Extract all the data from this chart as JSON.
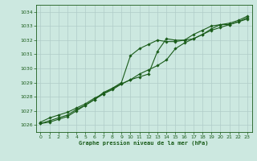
{
  "title": "Graphe pression niveau de la mer (hPa)",
  "bg_color": "#cce8e0",
  "grid_color": "#b0ccc8",
  "line_color": "#1a5c1a",
  "xlim": [
    -0.5,
    23.5
  ],
  "ylim": [
    1025.5,
    1034.5
  ],
  "yticks": [
    1026,
    1027,
    1028,
    1029,
    1030,
    1031,
    1032,
    1033,
    1034
  ],
  "xticks": [
    0,
    1,
    2,
    3,
    4,
    5,
    6,
    7,
    8,
    9,
    10,
    11,
    12,
    13,
    14,
    15,
    16,
    17,
    18,
    19,
    20,
    21,
    22,
    23
  ],
  "line1_x": [
    0,
    1,
    2,
    3,
    4,
    5,
    6,
    7,
    8,
    9,
    10,
    11,
    12,
    13,
    14,
    15,
    16,
    17,
    18,
    19,
    20,
    21,
    22,
    23
  ],
  "line1_y": [
    1026.2,
    1026.5,
    1026.7,
    1026.9,
    1027.2,
    1027.5,
    1027.9,
    1028.2,
    1028.6,
    1028.9,
    1029.2,
    1029.4,
    1029.6,
    1031.2,
    1032.1,
    1032.0,
    1032.0,
    1032.1,
    1032.4,
    1032.8,
    1033.1,
    1033.2,
    1033.4,
    1033.7
  ],
  "line2_x": [
    0,
    1,
    2,
    3,
    4,
    5,
    6,
    7,
    8,
    9,
    10,
    11,
    12,
    13,
    14,
    15,
    16,
    17,
    18,
    19,
    20,
    21,
    22,
    23
  ],
  "line2_y": [
    1026.1,
    1026.3,
    1026.5,
    1026.7,
    1027.1,
    1027.4,
    1027.8,
    1028.3,
    1028.6,
    1029.0,
    1030.9,
    1031.4,
    1031.7,
    1032.0,
    1031.9,
    1031.9,
    1032.0,
    1032.4,
    1032.7,
    1033.0,
    1033.1,
    1033.1,
    1033.3,
    1033.6
  ],
  "line3_x": [
    0,
    1,
    2,
    3,
    4,
    5,
    6,
    7,
    8,
    9,
    10,
    11,
    12,
    13,
    14,
    15,
    16,
    17,
    18,
    19,
    20,
    21,
    22,
    23
  ],
  "line3_y": [
    1026.1,
    1026.2,
    1026.4,
    1026.6,
    1027.0,
    1027.4,
    1027.8,
    1028.2,
    1028.5,
    1028.9,
    1029.2,
    1029.6,
    1029.9,
    1030.2,
    1030.6,
    1031.4,
    1031.8,
    1032.1,
    1032.4,
    1032.7,
    1032.9,
    1033.1,
    1033.3,
    1033.5
  ]
}
